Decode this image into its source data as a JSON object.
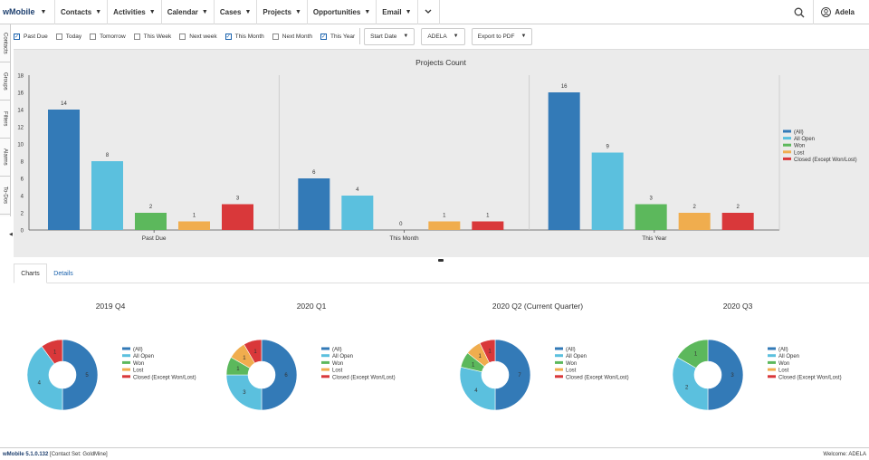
{
  "app": {
    "logo_text": "wMobile",
    "version": "wMobile 5.1.0.132",
    "contact_set": "[Contact Set: GoldMine]",
    "welcome": "Welcome: ADELA"
  },
  "nav": {
    "items": [
      {
        "label": "Contacts"
      },
      {
        "label": "Activities"
      },
      {
        "label": "Calendar"
      },
      {
        "label": "Cases"
      },
      {
        "label": "Projects"
      },
      {
        "label": "Opportunities"
      },
      {
        "label": "Email"
      }
    ],
    "more_icon": "chevron-down-icon",
    "user": "Adela"
  },
  "side_tabs": [
    "Contacts",
    "Groups",
    "Filters",
    "Alarms",
    "To-Dos"
  ],
  "filters": {
    "checkboxes": [
      {
        "label": "Past Due",
        "checked": true
      },
      {
        "label": "Today",
        "checked": false
      },
      {
        "label": "Tomorrow",
        "checked": false
      },
      {
        "label": "This Week",
        "checked": false
      },
      {
        "label": "Next week",
        "checked": false
      },
      {
        "label": "This Month",
        "checked": true
      },
      {
        "label": "Next Month",
        "checked": false
      },
      {
        "label": "This Year",
        "checked": true
      }
    ],
    "date_field": "Start Date",
    "user": "ADELA",
    "export": "Export to PDF"
  },
  "colors": {
    "all": "#337ab7",
    "all_open": "#5bc0de",
    "won": "#5cb85c",
    "lost": "#f0ad4e",
    "closed": "#d9383a"
  },
  "tabs": {
    "charts": "Charts",
    "details": "Details"
  },
  "chart_data": [
    {
      "type": "bar",
      "title": "Projects Count",
      "categories": [
        "Past Due",
        "This Month",
        "This Year"
      ],
      "ylim": [
        0,
        18
      ],
      "yticks": [
        0,
        2,
        4,
        6,
        8,
        10,
        12,
        14,
        16,
        18
      ],
      "legend_position": "right",
      "series": [
        {
          "name": "(All)",
          "values": [
            14,
            6,
            16
          ]
        },
        {
          "name": "All Open",
          "values": [
            8,
            4,
            9
          ]
        },
        {
          "name": "Won",
          "values": [
            2,
            0,
            3
          ]
        },
        {
          "name": "Lost",
          "values": [
            1,
            1,
            2
          ]
        },
        {
          "name": "Closed (Except Won/Lost)",
          "values": [
            3,
            1,
            2
          ]
        }
      ]
    },
    {
      "type": "pie",
      "title": "2019 Q4",
      "legend": [
        "(All)",
        "All Open",
        "Won",
        "Lost",
        "Closed (Except Won/Lost)"
      ],
      "values": [
        5,
        4,
        0,
        0,
        1
      ]
    },
    {
      "type": "pie",
      "title": "2020 Q1",
      "legend": [
        "(All)",
        "All Open",
        "Won",
        "Lost",
        "Closed (Except Won/Lost)"
      ],
      "values": [
        6,
        3,
        1,
        1,
        1
      ]
    },
    {
      "type": "pie",
      "title": "2020 Q2 (Current Quarter)",
      "legend": [
        "(All)",
        "All Open",
        "Won",
        "Lost",
        "Closed (Except Won/Lost)"
      ],
      "values": [
        7,
        4,
        1,
        1,
        1
      ]
    },
    {
      "type": "pie",
      "title": "2020 Q3",
      "legend": [
        "(All)",
        "All Open",
        "Won",
        "Lost",
        "Closed (Except Won/Lost)"
      ],
      "values": [
        3,
        2,
        1,
        0,
        0
      ]
    }
  ]
}
